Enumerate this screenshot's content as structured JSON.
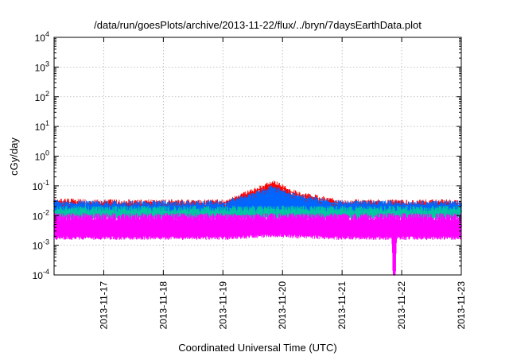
{
  "chart_data": {
    "type": "line",
    "title": "/data/run/goesPlots/archive/2013-11-22/flux/../bryn/7daysEarthData.plot",
    "xlabel": "Coordinated Universal Time (UTC)",
    "ylabel": "cGy/day",
    "x_range": [
      "2013-11-16T04:00",
      "2013-11-23T00:00"
    ],
    "x_ticks": [
      "2013-11-17",
      "2013-11-18",
      "2013-11-19",
      "2013-11-20",
      "2013-11-21",
      "2013-11-22",
      "2013-11-23"
    ],
    "y_scale": "log",
    "ylim": [
      0.0001,
      10000
    ],
    "y_ticks": [
      {
        "value": 0.0001,
        "base": "10",
        "exp": "-4"
      },
      {
        "value": 0.001,
        "base": "10",
        "exp": "-3"
      },
      {
        "value": 0.01,
        "base": "10",
        "exp": "-2"
      },
      {
        "value": 0.1,
        "base": "10",
        "exp": "-1"
      },
      {
        "value": 1,
        "base": "10",
        "exp": "0"
      },
      {
        "value": 10,
        "base": "10",
        "exp": "1"
      },
      {
        "value": 100,
        "base": "10",
        "exp": "2"
      },
      {
        "value": 1000,
        "base": "10",
        "exp": "3"
      },
      {
        "value": 10000,
        "base": "10",
        "exp": "4"
      }
    ],
    "grid": true,
    "series": [
      {
        "color": "#ff0000",
        "band_low": 0.012,
        "band_high": 0.026,
        "x": [
          "2013-11-16T04:00",
          "2013-11-17T00:00",
          "2013-11-18T00:00",
          "2013-11-19T00:00",
          "2013-11-19T12:00",
          "2013-11-19T20:00",
          "2013-11-20T06:00",
          "2013-11-21T00:00",
          "2013-11-22T00:00",
          "2013-11-23T00:00"
        ],
        "y": [
          0.03,
          0.024,
          0.023,
          0.026,
          0.06,
          0.12,
          0.05,
          0.026,
          0.024,
          0.025
        ]
      },
      {
        "color": "#0066ff",
        "band_low": 0.011,
        "band_high": 0.024,
        "x": [
          "2013-11-16T04:00",
          "2013-11-17T00:00",
          "2013-11-18T00:00",
          "2013-11-19T00:00",
          "2013-11-19T12:00",
          "2013-11-19T20:00",
          "2013-11-20T06:00",
          "2013-11-21T00:00",
          "2013-11-22T00:00",
          "2013-11-23T00:00"
        ],
        "y": [
          0.025,
          0.021,
          0.02,
          0.023,
          0.045,
          0.08,
          0.04,
          0.023,
          0.022,
          0.022
        ]
      },
      {
        "color": "#00c8a0",
        "band_low": 0.008,
        "band_high": 0.016,
        "x": [
          "2013-11-16T04:00",
          "2013-11-17T00:00",
          "2013-11-18T00:00",
          "2013-11-19T00:00",
          "2013-11-19T12:00",
          "2013-11-19T20:00",
          "2013-11-20T06:00",
          "2013-11-21T00:00",
          "2013-11-22T00:00",
          "2013-11-23T00:00"
        ],
        "y": [
          0.014,
          0.013,
          0.013,
          0.013,
          0.014,
          0.016,
          0.014,
          0.013,
          0.013,
          0.014
        ]
      },
      {
        "color": "#ff00ff",
        "band_low": 0.0022,
        "band_high": 0.009,
        "x": [
          "2013-11-16T04:00",
          "2013-11-17T00:00",
          "2013-11-18T00:00",
          "2013-11-19T00:00",
          "2013-11-19T12:00",
          "2013-11-19T20:00",
          "2013-11-20T06:00",
          "2013-11-21T00:00",
          "2013-11-21T20:00",
          "2013-11-21T21:00",
          "2013-11-21T22:00",
          "2013-11-22T00:00",
          "2013-11-23T00:00"
        ],
        "y": [
          0.0045,
          0.0045,
          0.0045,
          0.0045,
          0.005,
          0.0055,
          0.005,
          0.0045,
          0.0045,
          0.0001,
          0.0045,
          0.0045,
          0.0045
        ]
      }
    ]
  }
}
